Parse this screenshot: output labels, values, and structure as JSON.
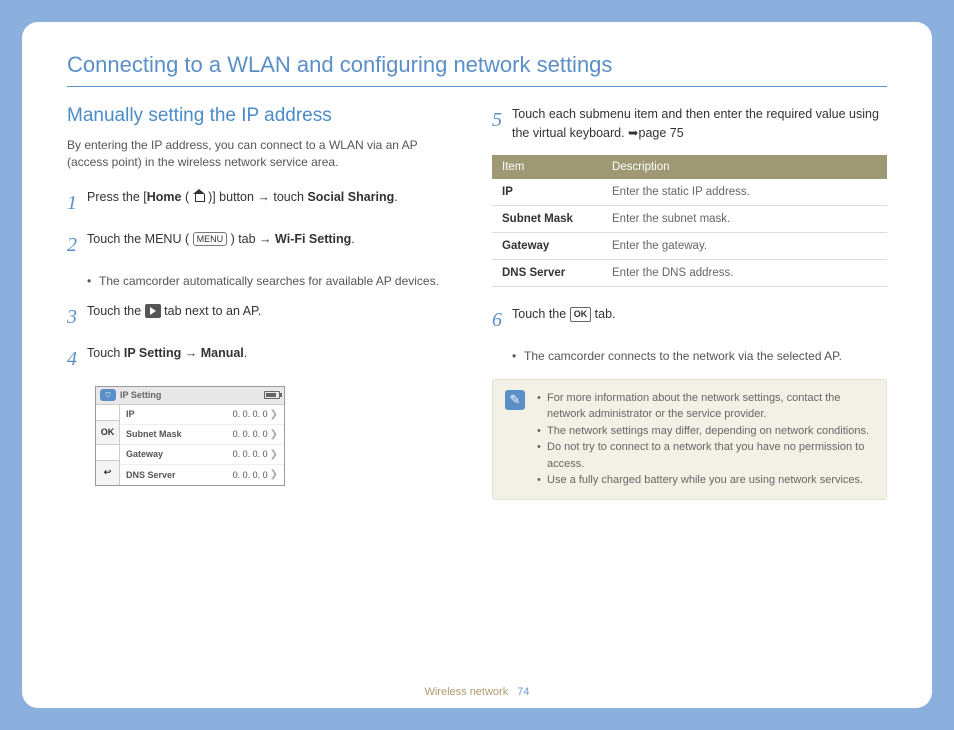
{
  "page_title": "Connecting to a WLAN and configuring network settings",
  "section_title": "Manually setting the IP address",
  "intro": "By entering the IP address, you can connect to a WLAN via an AP (access point) in the wireless network service area.",
  "steps": {
    "s1_a": "Press the [",
    "s1_home": "Home",
    "s1_b": " ( ",
    "s1_c": " )] button → touch ",
    "s1_social": "Social Sharing",
    "s1_d": ".",
    "s2_a": "Touch the MENU ( ",
    "s2_menu": "MENU",
    "s2_b": " ) tab → ",
    "s2_wifi": "Wi-Fi Setting",
    "s2_c": ".",
    "s2_sub": "The camcorder automatically searches for available AP devices.",
    "s3_a": "Touch the ",
    "s3_b": " tab next to an AP.",
    "s4_a": "Touch ",
    "s4_ip": "IP Setting",
    "s4_arrow": " → ",
    "s4_manual": "Manual",
    "s4_b": ".",
    "s5": "Touch each submenu item and then enter the required value using the virtual keyboard. ➥page 75",
    "s6_a": "Touch the ",
    "s6_ok": "OK",
    "s6_b": " tab.",
    "s6_sub": "The camcorder connects to the network via the selected AP."
  },
  "ui_mock": {
    "title": "IP Setting",
    "ok": "OK",
    "rows": [
      {
        "label": "IP",
        "value": "0. 0. 0. 0"
      },
      {
        "label": "Subnet Mask",
        "value": "0. 0. 0. 0"
      },
      {
        "label": "Gateway",
        "value": "0. 0. 0. 0"
      },
      {
        "label": "DNS Server",
        "value": "0. 0. 0. 0"
      }
    ]
  },
  "table": {
    "h1": "Item",
    "h2": "Description",
    "rows": [
      {
        "item": "IP",
        "desc": "Enter the static IP address."
      },
      {
        "item": "Subnet Mask",
        "desc": "Enter the subnet mask."
      },
      {
        "item": "Gateway",
        "desc": "Enter the gateway."
      },
      {
        "item": "DNS Server",
        "desc": "Enter the DNS address."
      }
    ]
  },
  "notes": [
    "For more information about the network settings, contact the network administrator or the service provider.",
    "The network settings may differ, depending on network conditions.",
    "Do not try to connect to a network that you have no permission to access.",
    "Use a fully charged battery while you are using network services."
  ],
  "footer_section": "Wireless network",
  "footer_page": "74"
}
